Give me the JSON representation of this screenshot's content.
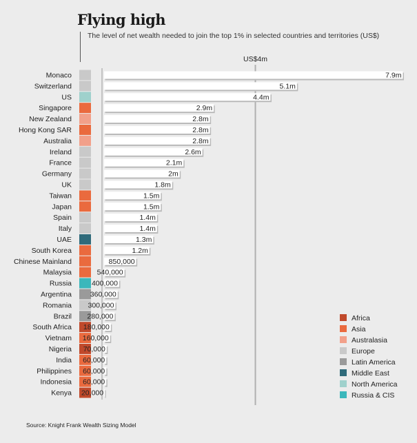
{
  "title": "Flying high",
  "subtitle": "The level of net wealth needed to join the top 1% in selected countries and territories (US$)",
  "source": "Source: Knight Frank Wealth Sizing Model",
  "chart_data": {
    "type": "bar",
    "orientation": "horizontal",
    "reference_line": {
      "value": 4000000,
      "label": "US$4m"
    },
    "xlim": [
      0,
      8000000
    ],
    "legend_position": "bottom-right",
    "grid": false,
    "categories": [
      "Monaco",
      "Switzerland",
      "US",
      "Singapore",
      "New Zealand",
      "Hong Kong SAR",
      "Australia",
      "Ireland",
      "France",
      "Germany",
      "UK",
      "Taiwan",
      "Japan",
      "Spain",
      "Italy",
      "UAE",
      "South Korea",
      "Chinese Mainland",
      "Malaysia",
      "Russia",
      "Argentina",
      "Romania",
      "Brazil",
      "South Africa",
      "Vietnam",
      "Nigeria",
      "India",
      "Philippines",
      "Indonesia",
      "Kenya"
    ],
    "values": [
      7900000,
      5100000,
      4400000,
      2900000,
      2800000,
      2800000,
      2800000,
      2600000,
      2100000,
      2000000,
      1800000,
      1500000,
      1500000,
      1400000,
      1400000,
      1300000,
      1200000,
      850000,
      540000,
      400000,
      360000,
      300000,
      280000,
      180000,
      160000,
      70000,
      60000,
      60000,
      60000,
      20000
    ],
    "value_labels": [
      "7.9m",
      "5.1m",
      "4.4m",
      "2.9m",
      "2.8m",
      "2.8m",
      "2.8m",
      "2.6m",
      "2.1m",
      "2m",
      "1.8m",
      "1.5m",
      "1.5m",
      "1.4m",
      "1.4m",
      "1.3m",
      "1.2m",
      "850,000",
      "540,000",
      "400,000",
      "360,000",
      "300,000",
      "280,000",
      "180,000",
      "160,000",
      "70,000",
      "60,000",
      "60,000",
      "60,000",
      "20,000"
    ],
    "regions": [
      "Europe",
      "Europe",
      "North America",
      "Asia",
      "Australasia",
      "Asia",
      "Australasia",
      "Europe",
      "Europe",
      "Europe",
      "Europe",
      "Asia",
      "Asia",
      "Europe",
      "Europe",
      "Middle East",
      "Asia",
      "Asia",
      "Asia",
      "Russia & CIS",
      "Latin America",
      "Europe",
      "Latin America",
      "Africa",
      "Asia",
      "Africa",
      "Asia",
      "Asia",
      "Asia",
      "Africa"
    ],
    "legend": [
      {
        "name": "Africa",
        "color": "#c0492b"
      },
      {
        "name": "Asia",
        "color": "#ea6a3e"
      },
      {
        "name": "Australasia",
        "color": "#f2a08a"
      },
      {
        "name": "Europe",
        "color": "#c9c9c9"
      },
      {
        "name": "Latin America",
        "color": "#9a9a9a"
      },
      {
        "name": "Middle East",
        "color": "#2f6a7a"
      },
      {
        "name": "North America",
        "color": "#9fd1cc"
      },
      {
        "name": "Russia & CIS",
        "color": "#3bb7bb"
      }
    ],
    "bar_color": "#ffffff"
  }
}
